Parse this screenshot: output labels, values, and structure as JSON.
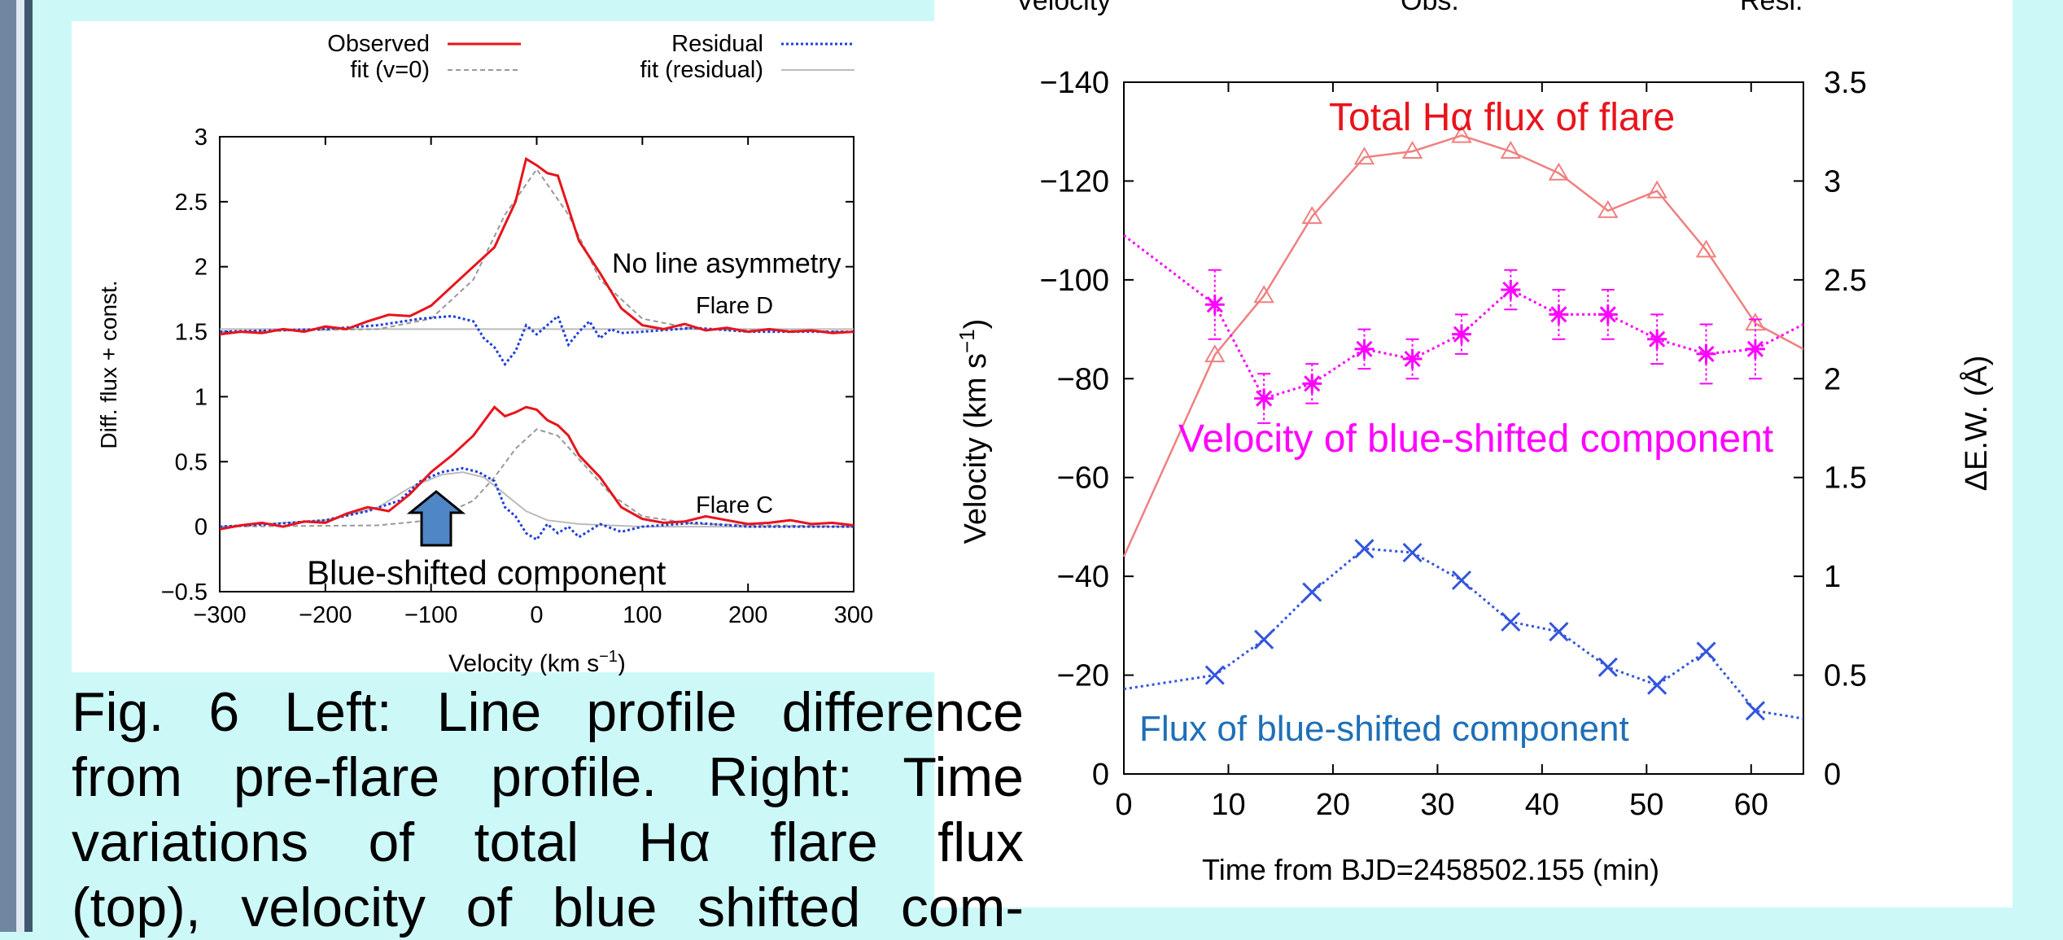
{
  "left_chart": {
    "chart_data": {
      "type": "line",
      "xlabel": "Velocity (km s",
      "xlabel_sup": "−1",
      "xlabel_end": ")",
      "ylabel": "Diff. flux + const.",
      "xlim": [
        -300,
        300
      ],
      "ylim": [
        -0.5,
        3
      ],
      "x_ticks": [
        "−300",
        "−200",
        "−100",
        "0",
        "100",
        "200",
        "300"
      ],
      "y_ticks": [
        "−0.5",
        "0",
        "0.5",
        "1",
        "1.5",
        "2",
        "2.5",
        "3"
      ],
      "legend": {
        "observed": "Observed",
        "fit_v0": "fit (v=0)",
        "residual": "Residual",
        "fit_residual": "fit (residual)"
      },
      "annotations": {
        "no_asym": "No line asymmetry",
        "flare_d": "Flare D",
        "flare_c": "Flare C",
        "blue_comp": "Blue-shifted component"
      },
      "colors": {
        "observed": "#e8141c",
        "residual": "#1f3fd9",
        "fit": "#999999",
        "arrow": "#4f86c6"
      },
      "flare_d_observed": {
        "x": [
          -300,
          -280,
          -260,
          -240,
          -220,
          -200,
          -180,
          -160,
          -140,
          -120,
          -100,
          -80,
          -60,
          -40,
          -20,
          -10,
          0,
          10,
          20,
          30,
          40,
          60,
          80,
          100,
          120,
          140,
          160,
          180,
          200,
          220,
          240,
          260,
          280,
          300
        ],
        "y": [
          1.48,
          1.5,
          1.49,
          1.52,
          1.5,
          1.54,
          1.52,
          1.58,
          1.63,
          1.62,
          1.7,
          1.85,
          2.0,
          2.15,
          2.5,
          2.83,
          2.78,
          2.72,
          2.7,
          2.45,
          2.2,
          1.95,
          1.68,
          1.55,
          1.52,
          1.56,
          1.51,
          1.53,
          1.5,
          1.52,
          1.5,
          1.51,
          1.49,
          1.5
        ]
      },
      "flare_d_fit": {
        "x": [
          -300,
          -150,
          -100,
          -60,
          -30,
          0,
          30,
          60,
          100,
          150,
          300
        ],
        "y": [
          1.5,
          1.52,
          1.6,
          1.9,
          2.4,
          2.75,
          2.4,
          1.9,
          1.6,
          1.52,
          1.5
        ]
      },
      "flare_d_residual": {
        "x": [
          -300,
          -200,
          -150,
          -110,
          -80,
          -60,
          -50,
          -40,
          -30,
          -20,
          -10,
          0,
          10,
          20,
          30,
          40,
          50,
          60,
          70,
          80,
          100,
          150,
          200,
          300
        ],
        "y": [
          1.5,
          1.52,
          1.55,
          1.6,
          1.62,
          1.58,
          1.45,
          1.38,
          1.25,
          1.35,
          1.55,
          1.48,
          1.55,
          1.62,
          1.4,
          1.5,
          1.58,
          1.45,
          1.52,
          1.49,
          1.5,
          1.53,
          1.5,
          1.5
        ]
      },
      "flare_c_observed": {
        "x": [
          -300,
          -280,
          -260,
          -240,
          -220,
          -200,
          -180,
          -160,
          -140,
          -120,
          -100,
          -80,
          -60,
          -40,
          -30,
          -20,
          -10,
          0,
          10,
          20,
          30,
          40,
          60,
          80,
          100,
          120,
          140,
          160,
          180,
          200,
          220,
          240,
          260,
          280,
          300
        ],
        "y": [
          -0.02,
          0.01,
          0.03,
          0.0,
          0.04,
          0.03,
          0.1,
          0.15,
          0.12,
          0.25,
          0.42,
          0.55,
          0.7,
          0.92,
          0.85,
          0.88,
          0.92,
          0.9,
          0.82,
          0.78,
          0.7,
          0.55,
          0.38,
          0.15,
          0.06,
          0.03,
          0.04,
          0.08,
          0.05,
          0.02,
          0.03,
          0.05,
          0.02,
          0.03,
          0.01
        ]
      },
      "flare_c_fit": {
        "x": [
          -300,
          -150,
          -100,
          -60,
          -40,
          -20,
          0,
          20,
          40,
          70,
          100,
          150,
          300
        ],
        "y": [
          0.0,
          0.01,
          0.05,
          0.2,
          0.38,
          0.6,
          0.75,
          0.7,
          0.52,
          0.25,
          0.08,
          0.02,
          0.0
        ]
      },
      "flare_c_residual": {
        "x": [
          -300,
          -250,
          -200,
          -160,
          -130,
          -110,
          -90,
          -70,
          -55,
          -40,
          -30,
          -20,
          -10,
          0,
          10,
          20,
          30,
          40,
          60,
          80,
          100,
          150,
          200,
          300
        ],
        "y": [
          0.0,
          0.02,
          0.05,
          0.12,
          0.2,
          0.35,
          0.42,
          0.45,
          0.42,
          0.35,
          0.15,
          0.08,
          -0.05,
          -0.1,
          0.02,
          -0.05,
          0.0,
          -0.08,
          0.02,
          -0.04,
          0.0,
          0.03,
          0.0,
          0.0
        ]
      },
      "flare_c_fit_residual": {
        "x": [
          -300,
          -200,
          -150,
          -120,
          -90,
          -70,
          -50,
          -30,
          -10,
          10,
          40,
          100,
          300
        ],
        "y": [
          0.0,
          0.05,
          0.15,
          0.3,
          0.4,
          0.42,
          0.38,
          0.25,
          0.12,
          0.05,
          0.02,
          0.0,
          0.0
        ]
      }
    }
  },
  "right_chart": {
    "top_labels": [
      "Velocity",
      "Obs.",
      "Resi."
    ],
    "chart_data": {
      "type": "line",
      "xlabel": "Time from BJD=2458502.155 (min)",
      "ylabel": "Velocity (km s",
      "ylabel_sup": "−1",
      "ylabel_end": ")",
      "y2label": "ΔE.W. (Å)",
      "xlim": [
        0,
        65
      ],
      "ylim_velocity": [
        0,
        -140
      ],
      "ylim_ew": [
        0,
        3.5
      ],
      "x_ticks": [
        "0",
        "10",
        "20",
        "30",
        "40",
        "50",
        "60"
      ],
      "y_ticks_left": [
        "0",
        "−20",
        "−40",
        "−60",
        "−80",
        "−100",
        "−120",
        "−140"
      ],
      "y_ticks_right": [
        "0",
        "0.5",
        "1",
        "1.5",
        "2",
        "2.5",
        "3",
        "3.5"
      ],
      "annotations": {
        "total": "Total Hα  flux of flare",
        "velocity": "Velocity of blue-shifted component",
        "flux": "Flux of blue-shifted component"
      },
      "colors": {
        "total": "#f08080",
        "velocity": "#ff00ff",
        "flux": "#3355dd",
        "total_text": "#e8141c",
        "flux_text": "#1e6fb8"
      },
      "series": [
        {
          "name": "Total Hα  flux of flare",
          "axis": "ew",
          "x": [
            0,
            8.7,
            13.4,
            18,
            23,
            27.6,
            32.3,
            37,
            41.6,
            46.3,
            51,
            55.7,
            60.4,
            65
          ],
          "y": [
            1.1,
            2.12,
            2.42,
            2.82,
            3.12,
            3.15,
            3.23,
            3.15,
            3.04,
            2.85,
            2.95,
            2.65,
            2.28,
            2.15
          ]
        },
        {
          "name": "Velocity of blue-shifted component",
          "axis": "velocity",
          "x": [
            0,
            8.7,
            13.4,
            18,
            23,
            27.6,
            32.3,
            37,
            41.6,
            46.3,
            51,
            55.7,
            60.4,
            65
          ],
          "y": [
            -109,
            -95,
            -76,
            -79,
            -86,
            -84,
            -89,
            -98,
            -93,
            -93,
            -88,
            -85,
            -86,
            -91
          ],
          "err": [
            null,
            7,
            5,
            4,
            4,
            4,
            4,
            4,
            5,
            5,
            5,
            6,
            6,
            null
          ]
        },
        {
          "name": "Flux of blue-shifted component",
          "axis": "ew",
          "x": [
            0,
            8.7,
            13.4,
            18,
            23,
            27.6,
            32.3,
            37,
            41.6,
            46.3,
            51,
            55.7,
            60.4,
            65
          ],
          "y": [
            0.43,
            0.5,
            0.68,
            0.92,
            1.14,
            1.12,
            0.98,
            0.77,
            0.72,
            0.54,
            0.45,
            0.62,
            0.32,
            0.28
          ]
        }
      ]
    }
  },
  "caption": {
    "line1": "Fig. 6 Left: Line profile difference",
    "line2": "from pre-flare profile.  Right: Time",
    "line3": "variations  of  total  Hα  flare  flux",
    "line4": "(top), velocity of blue shifted com-"
  }
}
